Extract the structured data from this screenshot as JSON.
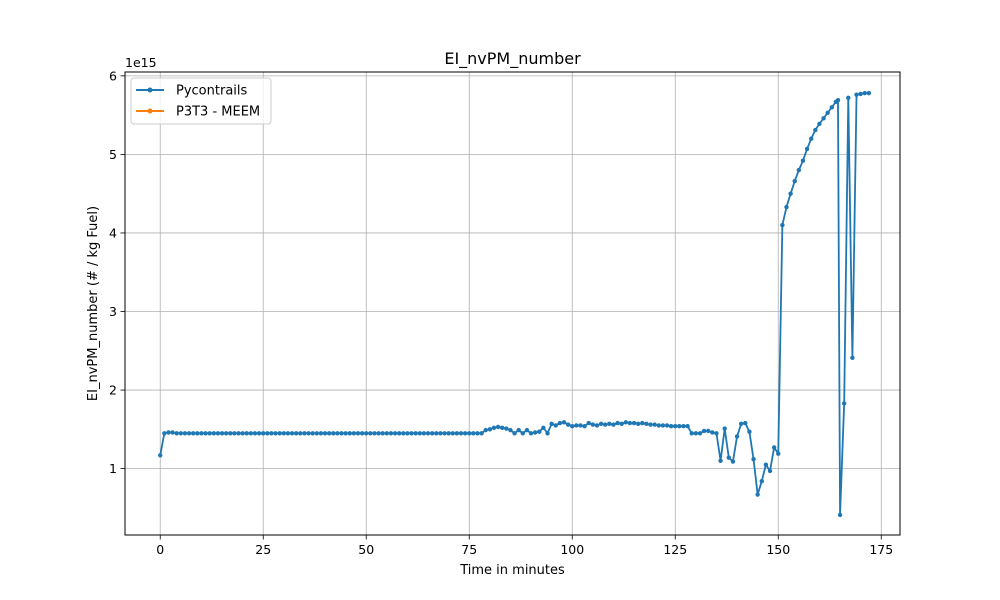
{
  "chart_data": {
    "type": "line",
    "title": "EI_nvPM_number",
    "xlabel": "Time in minutes",
    "ylabel": "EI_nvPM_number (# / kg Fuel)",
    "y_offset_label": "1e15",
    "xlim": [
      -8.55,
      179.55
    ],
    "ylim": [
      0.155,
      6.049
    ],
    "x_ticks": [
      0,
      25,
      50,
      75,
      100,
      125,
      150,
      175
    ],
    "x_tick_labels": [
      "0",
      "25",
      "50",
      "75",
      "100",
      "125",
      "150",
      "175"
    ],
    "y_ticks": [
      1,
      2,
      3,
      4,
      5,
      6
    ],
    "y_tick_labels": [
      "1",
      "2",
      "3",
      "4",
      "5",
      "6"
    ],
    "grid": true,
    "legend_position": "top-left",
    "series": [
      {
        "name": "Pycontrails",
        "color": "#1f77b4",
        "marker": "circle",
        "points": [
          [
            0,
            1.17
          ],
          [
            1,
            1.45
          ],
          [
            2,
            1.46
          ],
          [
            3,
            1.46
          ],
          [
            4,
            1.45
          ],
          [
            5,
            1.45
          ],
          [
            6,
            1.45
          ],
          [
            7,
            1.45
          ],
          [
            8,
            1.45
          ],
          [
            9,
            1.45
          ],
          [
            10,
            1.45
          ],
          [
            11,
            1.45
          ],
          [
            12,
            1.45
          ],
          [
            13,
            1.45
          ],
          [
            14,
            1.45
          ],
          [
            15,
            1.45
          ],
          [
            16,
            1.45
          ],
          [
            17,
            1.45
          ],
          [
            18,
            1.45
          ],
          [
            19,
            1.45
          ],
          [
            20,
            1.45
          ],
          [
            21,
            1.45
          ],
          [
            22,
            1.45
          ],
          [
            23,
            1.45
          ],
          [
            24,
            1.45
          ],
          [
            25,
            1.45
          ],
          [
            26,
            1.45
          ],
          [
            27,
            1.45
          ],
          [
            28,
            1.45
          ],
          [
            29,
            1.45
          ],
          [
            30,
            1.45
          ],
          [
            31,
            1.45
          ],
          [
            32,
            1.45
          ],
          [
            33,
            1.45
          ],
          [
            34,
            1.45
          ],
          [
            35,
            1.45
          ],
          [
            36,
            1.45
          ],
          [
            37,
            1.45
          ],
          [
            38,
            1.45
          ],
          [
            39,
            1.45
          ],
          [
            40,
            1.45
          ],
          [
            41,
            1.45
          ],
          [
            42,
            1.45
          ],
          [
            43,
            1.45
          ],
          [
            44,
            1.45
          ],
          [
            45,
            1.45
          ],
          [
            46,
            1.45
          ],
          [
            47,
            1.45
          ],
          [
            48,
            1.45
          ],
          [
            49,
            1.45
          ],
          [
            50,
            1.45
          ],
          [
            51,
            1.45
          ],
          [
            52,
            1.45
          ],
          [
            53,
            1.45
          ],
          [
            54,
            1.45
          ],
          [
            55,
            1.45
          ],
          [
            56,
            1.45
          ],
          [
            57,
            1.45
          ],
          [
            58,
            1.45
          ],
          [
            59,
            1.45
          ],
          [
            60,
            1.45
          ],
          [
            61,
            1.45
          ],
          [
            62,
            1.45
          ],
          [
            63,
            1.45
          ],
          [
            64,
            1.45
          ],
          [
            65,
            1.45
          ],
          [
            66,
            1.45
          ],
          [
            67,
            1.45
          ],
          [
            68,
            1.45
          ],
          [
            69,
            1.45
          ],
          [
            70,
            1.45
          ],
          [
            71,
            1.45
          ],
          [
            72,
            1.45
          ],
          [
            73,
            1.45
          ],
          [
            74,
            1.45
          ],
          [
            75,
            1.45
          ],
          [
            76,
            1.45
          ],
          [
            77,
            1.45
          ],
          [
            78,
            1.45
          ],
          [
            79,
            1.49
          ],
          [
            80,
            1.5
          ],
          [
            81,
            1.52
          ],
          [
            82,
            1.53
          ],
          [
            83,
            1.52
          ],
          [
            84,
            1.51
          ],
          [
            85,
            1.49
          ],
          [
            86,
            1.45
          ],
          [
            87,
            1.49
          ],
          [
            88,
            1.45
          ],
          [
            89,
            1.49
          ],
          [
            90,
            1.45
          ],
          [
            91,
            1.46
          ],
          [
            92,
            1.47
          ],
          [
            93,
            1.52
          ],
          [
            94,
            1.45
          ],
          [
            95,
            1.57
          ],
          [
            96,
            1.55
          ],
          [
            97,
            1.58
          ],
          [
            98,
            1.59
          ],
          [
            99,
            1.56
          ],
          [
            100,
            1.54
          ],
          [
            101,
            1.55
          ],
          [
            102,
            1.55
          ],
          [
            103,
            1.54
          ],
          [
            104,
            1.58
          ],
          [
            105,
            1.56
          ],
          [
            106,
            1.55
          ],
          [
            107,
            1.57
          ],
          [
            108,
            1.56
          ],
          [
            109,
            1.57
          ],
          [
            110,
            1.56
          ],
          [
            111,
            1.58
          ],
          [
            112,
            1.57
          ],
          [
            113,
            1.59
          ],
          [
            114,
            1.58
          ],
          [
            115,
            1.58
          ],
          [
            116,
            1.57
          ],
          [
            117,
            1.58
          ],
          [
            118,
            1.57
          ],
          [
            119,
            1.56
          ],
          [
            120,
            1.56
          ],
          [
            121,
            1.55
          ],
          [
            122,
            1.55
          ],
          [
            123,
            1.55
          ],
          [
            124,
            1.54
          ],
          [
            125,
            1.54
          ],
          [
            126,
            1.54
          ],
          [
            127,
            1.54
          ],
          [
            128,
            1.54
          ],
          [
            129,
            1.45
          ],
          [
            130,
            1.45
          ],
          [
            131,
            1.45
          ],
          [
            132,
            1.48
          ],
          [
            133,
            1.48
          ],
          [
            134,
            1.46
          ],
          [
            135,
            1.45
          ],
          [
            136,
            1.1
          ],
          [
            137,
            1.51
          ],
          [
            138,
            1.14
          ],
          [
            139,
            1.09
          ],
          [
            140,
            1.41
          ],
          [
            141,
            1.57
          ],
          [
            142,
            1.58
          ],
          [
            143,
            1.47
          ],
          [
            144,
            1.12
          ],
          [
            145,
            0.67
          ],
          [
            146,
            0.84
          ],
          [
            147,
            1.05
          ],
          [
            148,
            0.97
          ],
          [
            149,
            1.27
          ],
          [
            150,
            1.19
          ],
          [
            151,
            4.1
          ],
          [
            152,
            4.33
          ],
          [
            153,
            4.5
          ],
          [
            154,
            4.66
          ],
          [
            155,
            4.8
          ],
          [
            156,
            4.92
          ],
          [
            157,
            5.07
          ],
          [
            158,
            5.2
          ],
          [
            159,
            5.31
          ],
          [
            160,
            5.39
          ],
          [
            161,
            5.46
          ],
          [
            162,
            5.53
          ],
          [
            163,
            5.6
          ],
          [
            164,
            5.67
          ],
          [
            164.5,
            5.69
          ],
          [
            165,
            0.41
          ],
          [
            166,
            1.83
          ],
          [
            167,
            5.72
          ],
          [
            168,
            2.41
          ],
          [
            169,
            5.76
          ],
          [
            170,
            5.77
          ],
          [
            171,
            5.78
          ],
          [
            172,
            5.78
          ]
        ]
      },
      {
        "name": "P3T3 - MEEM",
        "color": "#ff7f0e",
        "marker": "circle",
        "points": []
      }
    ]
  }
}
